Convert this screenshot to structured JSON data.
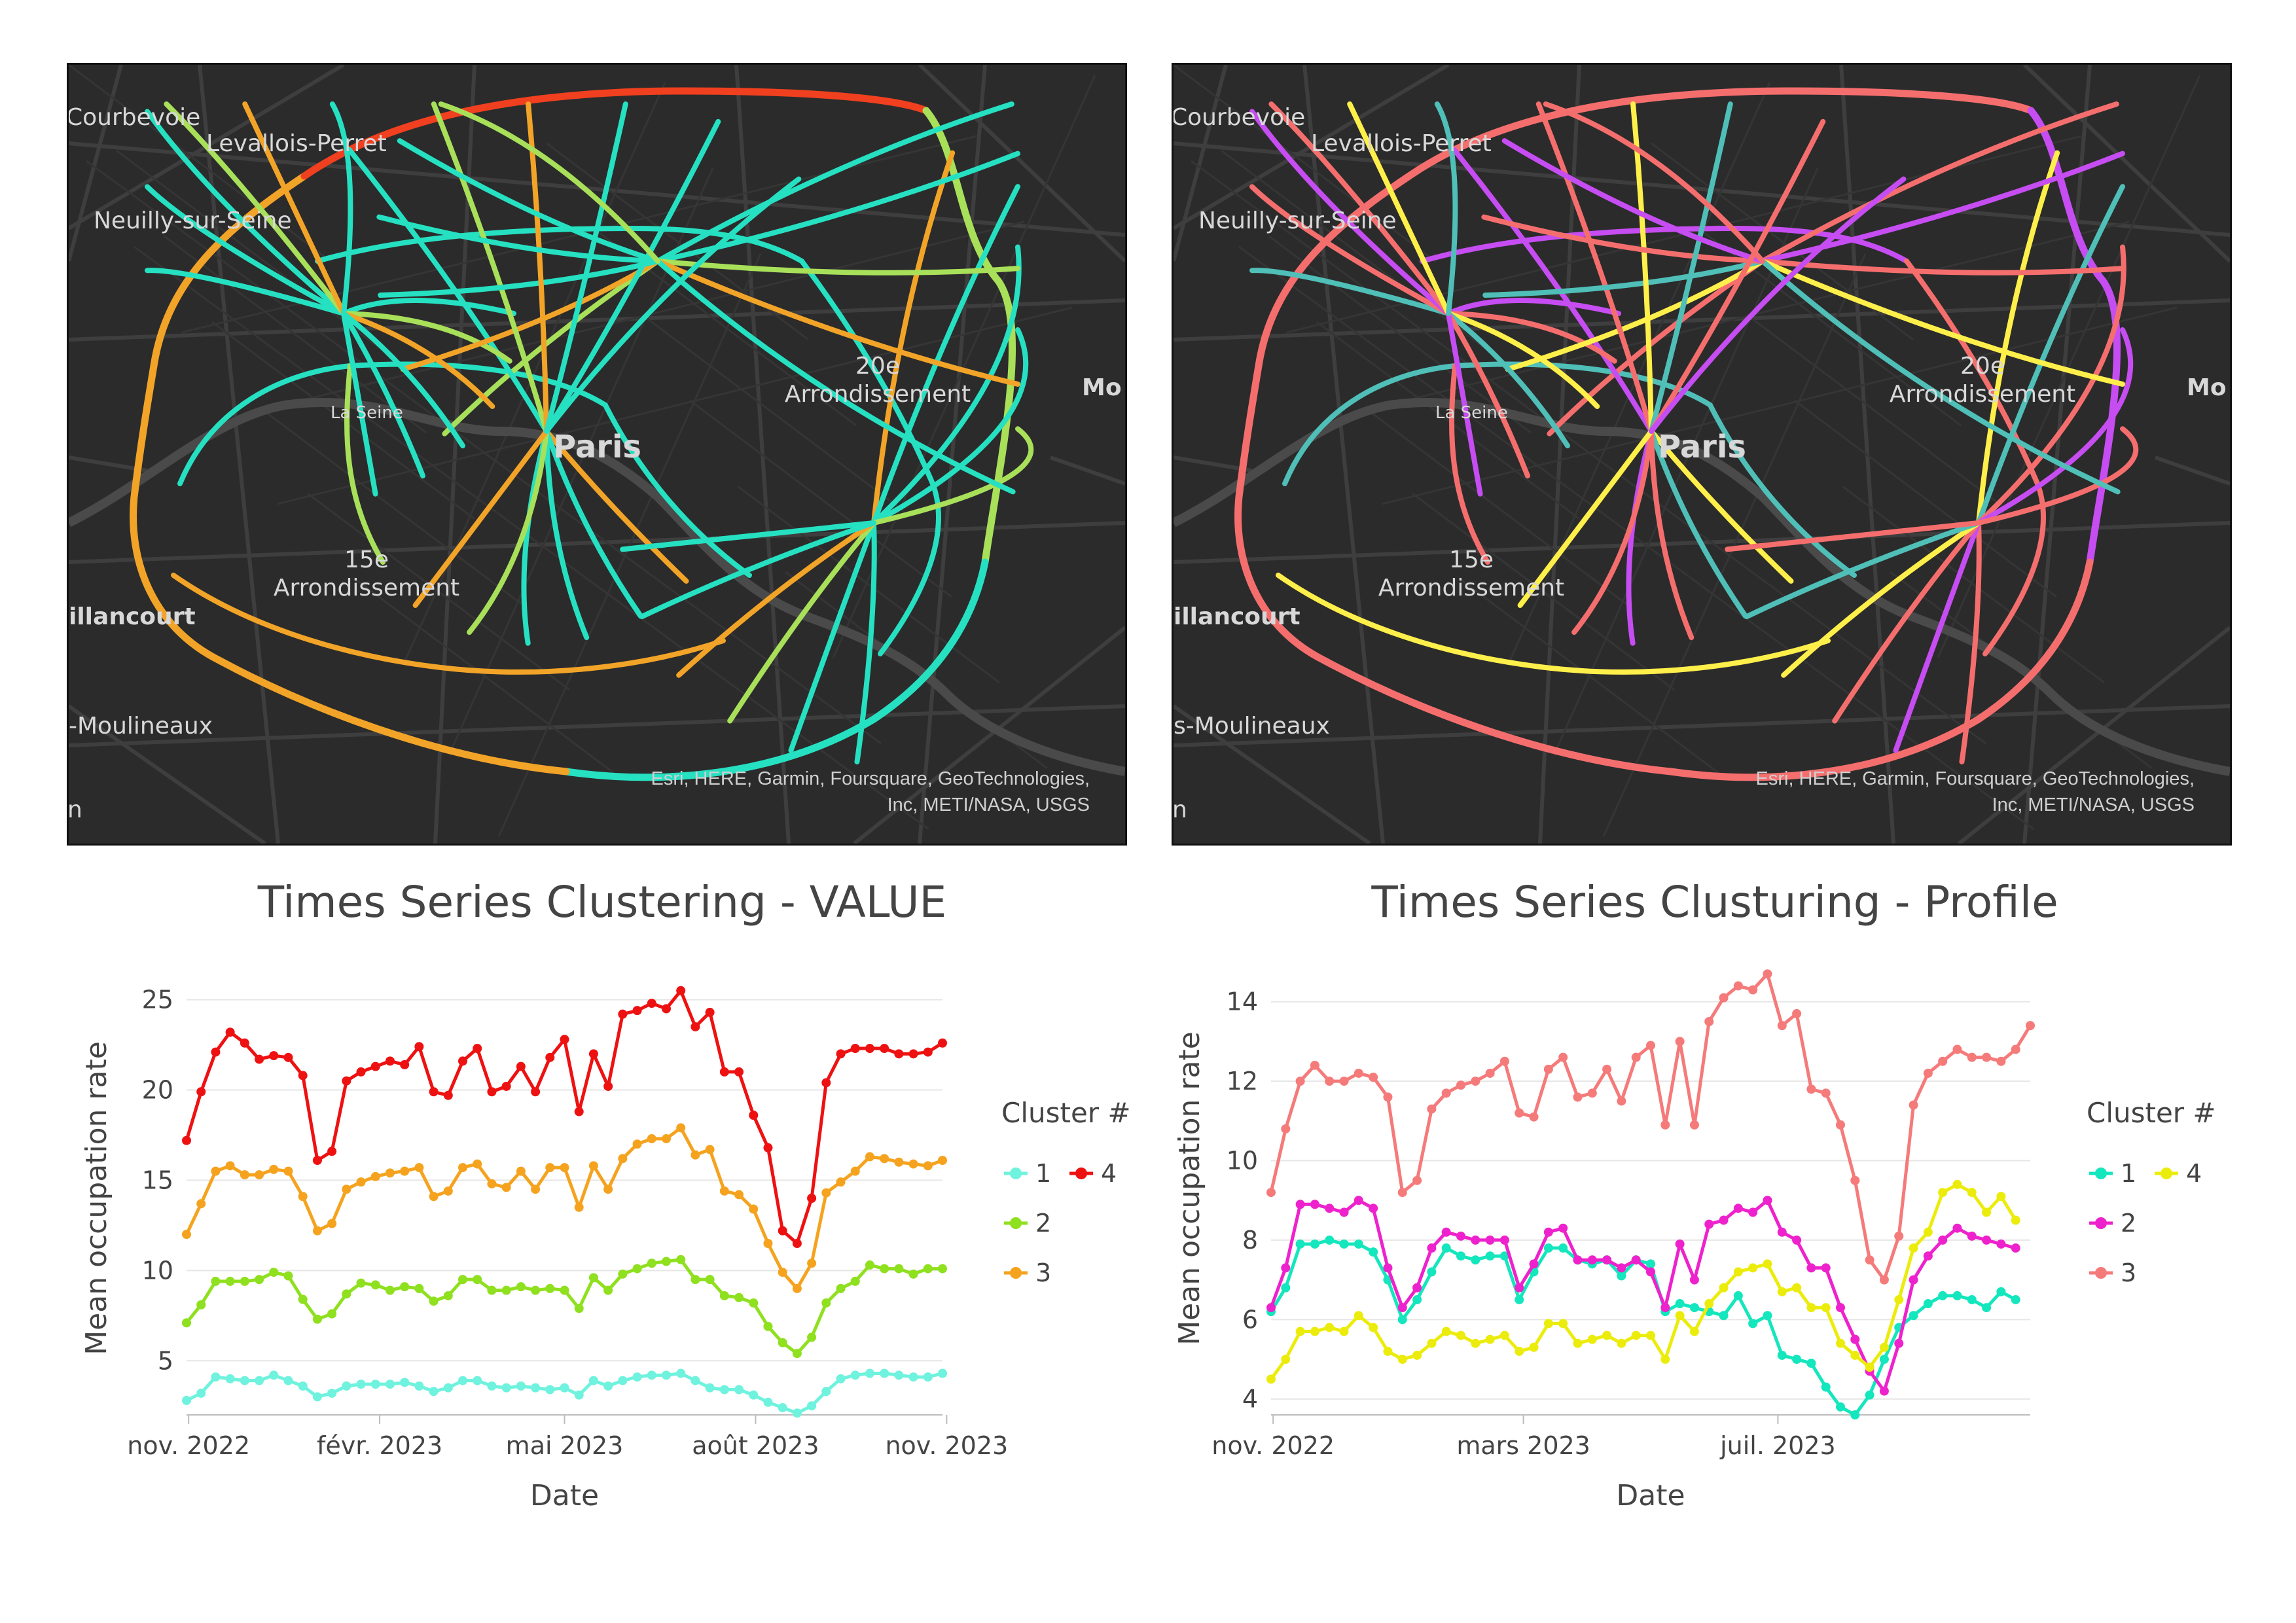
{
  "maps": [
    {
      "id": "value",
      "labels": {
        "courbevoie": "Courbevoie",
        "levallois": "Levallois-Perret",
        "neuilly": "Neuilly-sur-Seine",
        "paris": "Paris",
        "seine": "La Seine",
        "arr20_num": "20e",
        "arr20": "Arrondissement",
        "arr15_num": "15e",
        "arr15": "Arrondissement",
        "billancourt": "illancourt",
        "moulineaux": "-Moulineaux",
        "mo": "Mo",
        "n": "n"
      },
      "attribution_1": "Esri, HERE, Garmin, Foursquare, GeoTechnologies,",
      "attribution_2": "Inc, METI/NASA, USGS",
      "palette": {
        "base": "#26e0c2",
        "mid": "#a8e05a",
        "warm": "#f2a428",
        "hot": "#f0401f"
      }
    },
    {
      "id": "profile",
      "labels": {
        "courbevoie": "Courbevoie",
        "levallois": "Levallois-Perret",
        "neuilly": "Neuilly-sur-Seine",
        "paris": "Paris",
        "seine": "La Seine",
        "arr20_num": "20e",
        "arr20": "Arrondissement",
        "arr15_num": "15e",
        "arr15": "Arrondissement",
        "billancourt": "illancourt",
        "moulineaux": "s-Moulineaux",
        "mo": "Mo",
        "n": "n"
      },
      "attribution_1": "Esri, HERE, Garmin, Foursquare, GeoTechnologies,",
      "attribution_2": "Inc, METI/NASA, USGS",
      "palette": {
        "c1": "#4fbfb8",
        "c2": "#c64df2",
        "c3": "#f56e6e",
        "c4": "#ffef4a"
      }
    }
  ],
  "chart_data": [
    {
      "type": "line",
      "title": "Times Series Clustering - VALUE",
      "xlabel": "Date",
      "ylabel": "Mean occupation rate",
      "x_start": "2022-10-31",
      "x_end": "2023-10-30",
      "x_ticks": [
        {
          "date": "2022-11-01",
          "label": "nov. 2022"
        },
        {
          "date": "2023-02-01",
          "label": "févr. 2023"
        },
        {
          "date": "2023-05-01",
          "label": "mai 2023"
        },
        {
          "date": "2023-08-01",
          "label": "août 2023"
        },
        {
          "date": "2023-11-01",
          "label": "nov. 2023"
        }
      ],
      "ylim": [
        2,
        26
      ],
      "y_ticks": [
        5,
        10,
        15,
        20,
        25
      ],
      "grid": true,
      "legend_title": "Cluster #",
      "legend_layout": [
        [
          "1",
          "4"
        ],
        [
          "2"
        ],
        [
          "3"
        ]
      ],
      "series": [
        {
          "name": "1",
          "color": "#6ff2de",
          "values": [
            2.8,
            3.2,
            4.1,
            4.0,
            3.9,
            3.9,
            4.2,
            3.9,
            3.6,
            3.0,
            3.2,
            3.6,
            3.7,
            3.7,
            3.7,
            3.8,
            3.6,
            3.3,
            3.5,
            3.9,
            3.9,
            3.6,
            3.5,
            3.6,
            3.5,
            3.4,
            3.5,
            3.1,
            3.9,
            3.6,
            3.9,
            4.1,
            4.2,
            4.2,
            4.3,
            3.9,
            3.5,
            3.4,
            3.4,
            3.1,
            2.7,
            2.4,
            2.1,
            2.5,
            3.3,
            4.0,
            4.2,
            4.3,
            4.3,
            4.2,
            4.1,
            4.1,
            4.3
          ]
        },
        {
          "name": "2",
          "color": "#8fe01f",
          "values": [
            7.1,
            8.1,
            9.4,
            9.4,
            9.4,
            9.5,
            9.9,
            9.7,
            8.4,
            7.3,
            7.6,
            8.7,
            9.3,
            9.2,
            8.9,
            9.1,
            9.0,
            8.3,
            8.6,
            9.5,
            9.5,
            8.9,
            8.9,
            9.1,
            8.9,
            9.0,
            8.9,
            7.9,
            9.6,
            8.9,
            9.8,
            10.1,
            10.4,
            10.5,
            10.6,
            9.5,
            9.5,
            8.6,
            8.5,
            8.2,
            6.9,
            6.0,
            5.4,
            6.3,
            8.2,
            9.0,
            9.4,
            10.3,
            10.1,
            10.1,
            9.8,
            10.1,
            10.1
          ]
        },
        {
          "name": "3",
          "color": "#f5a31f",
          "values": [
            12.0,
            13.7,
            15.5,
            15.8,
            15.3,
            15.3,
            15.6,
            15.5,
            14.1,
            12.2,
            12.6,
            14.5,
            14.9,
            15.2,
            15.4,
            15.5,
            15.7,
            14.1,
            14.4,
            15.7,
            15.9,
            14.8,
            14.6,
            15.5,
            14.5,
            15.7,
            15.7,
            13.5,
            15.8,
            14.5,
            16.2,
            17.0,
            17.3,
            17.3,
            17.9,
            16.4,
            16.7,
            14.4,
            14.2,
            13.4,
            11.5,
            9.9,
            9.0,
            10.4,
            14.3,
            14.9,
            15.5,
            16.3,
            16.2,
            16.0,
            15.9,
            15.8,
            16.1
          ]
        },
        {
          "name": "4",
          "color": "#ee1111",
          "values": [
            17.2,
            19.9,
            22.1,
            23.2,
            22.6,
            21.7,
            21.9,
            21.8,
            20.8,
            16.1,
            16.6,
            20.5,
            21.0,
            21.3,
            21.6,
            21.4,
            22.4,
            19.9,
            19.7,
            21.6,
            22.3,
            19.9,
            20.2,
            21.3,
            19.9,
            21.8,
            22.8,
            18.8,
            22.0,
            20.2,
            24.2,
            24.4,
            24.8,
            24.5,
            25.5,
            23.5,
            24.3,
            21.0,
            21.0,
            18.6,
            16.8,
            12.2,
            11.5,
            14.0,
            20.4,
            22.0,
            22.3,
            22.3,
            22.3,
            22.0,
            22.0,
            22.1,
            22.6
          ]
        }
      ]
    },
    {
      "type": "line",
      "title": "Times Series Clusturing - Profile",
      "xlabel": "Date",
      "ylabel": "Mean occupation rate",
      "x_start": "2022-10-31",
      "x_end": "2023-10-30",
      "x_ticks": [
        {
          "date": "2022-11-01",
          "label": "nov. 2022"
        },
        {
          "date": "2023-03-01",
          "label": "mars 2023"
        },
        {
          "date": "2023-07-01",
          "label": "juil. 2023"
        }
      ],
      "ylim": [
        3.6,
        15
      ],
      "y_ticks": [
        4,
        6,
        8,
        10,
        12,
        14
      ],
      "grid": true,
      "legend_title": "Cluster #",
      "legend_layout": [
        [
          "1",
          "4"
        ],
        [
          "2"
        ],
        [
          "3"
        ]
      ],
      "series": [
        {
          "name": "1",
          "color": "#14e6bd",
          "values": [
            6.2,
            6.8,
            7.9,
            7.9,
            8.0,
            7.9,
            7.9,
            7.7,
            7.0,
            6.0,
            6.5,
            7.2,
            7.8,
            7.6,
            7.5,
            7.6,
            7.6,
            6.5,
            7.2,
            7.8,
            7.8,
            7.5,
            7.4,
            7.5,
            7.1,
            7.5,
            7.4,
            6.2,
            6.4,
            6.3,
            6.2,
            6.1,
            6.6,
            5.9,
            6.1,
            5.1,
            5.0,
            4.9,
            4.3,
            3.8,
            3.6,
            4.1,
            5.0,
            5.8,
            6.1,
            6.4,
            6.6,
            6.6,
            6.5,
            6.3,
            6.7,
            6.5
          ]
        },
        {
          "name": "2",
          "color": "#ee22cc",
          "values": [
            6.3,
            7.3,
            8.9,
            8.9,
            8.8,
            8.7,
            9.0,
            8.8,
            7.3,
            6.3,
            6.8,
            7.8,
            8.2,
            8.1,
            8.0,
            8.0,
            8.0,
            6.8,
            7.4,
            8.2,
            8.3,
            7.5,
            7.5,
            7.5,
            7.3,
            7.5,
            7.2,
            6.3,
            7.9,
            7.0,
            8.4,
            8.5,
            8.8,
            8.7,
            9.0,
            8.2,
            8.0,
            7.3,
            7.3,
            6.3,
            5.5,
            4.7,
            4.2,
            5.4,
            7.0,
            7.6,
            8.0,
            8.3,
            8.1,
            8.0,
            7.9,
            7.8
          ]
        },
        {
          "name": "3",
          "color": "#f57a7a",
          "values": [
            9.2,
            10.8,
            12.0,
            12.4,
            12.0,
            12.0,
            12.2,
            12.1,
            11.6,
            9.2,
            9.5,
            11.3,
            11.7,
            11.9,
            12.0,
            12.2,
            12.5,
            11.2,
            11.1,
            12.3,
            12.6,
            11.6,
            11.7,
            12.3,
            11.5,
            12.6,
            12.9,
            10.9,
            13.0,
            10.9,
            13.5,
            14.1,
            14.4,
            14.3,
            14.7,
            13.4,
            13.7,
            11.8,
            11.7,
            10.9,
            9.5,
            7.5,
            7.0,
            8.1,
            11.4,
            12.2,
            12.5,
            12.8,
            12.6,
            12.6,
            12.5,
            12.8,
            13.4
          ]
        },
        {
          "name": "4",
          "color": "#ecec0c",
          "values": [
            4.5,
            5.0,
            5.7,
            5.7,
            5.8,
            5.7,
            6.1,
            5.8,
            5.2,
            5.0,
            5.1,
            5.4,
            5.7,
            5.6,
            5.4,
            5.5,
            5.6,
            5.2,
            5.3,
            5.9,
            5.9,
            5.4,
            5.5,
            5.6,
            5.4,
            5.6,
            5.6,
            5.0,
            6.1,
            5.7,
            6.4,
            6.8,
            7.2,
            7.3,
            7.4,
            6.7,
            6.8,
            6.3,
            6.3,
            5.4,
            5.1,
            4.8,
            5.3,
            6.5,
            7.8,
            8.2,
            9.2,
            9.4,
            9.2,
            8.7,
            9.1,
            8.5
          ]
        }
      ]
    }
  ]
}
